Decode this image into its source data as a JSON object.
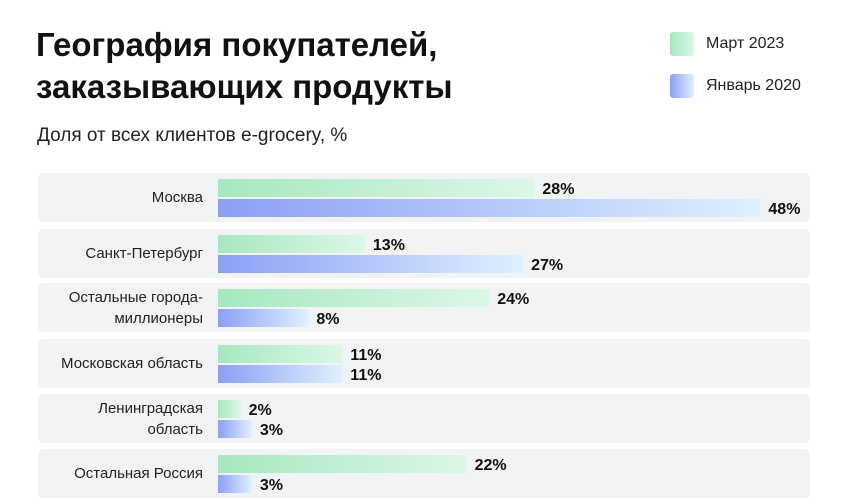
{
  "chart_data": {
    "type": "bar",
    "orientation": "horizontal",
    "title": "География покупателей, заказывающих продукты",
    "subtitle": "Доля от всех клиентов e-grocery, %",
    "categories": [
      "Москва",
      "Санкт-Петербург",
      "Остальные города-миллионеры",
      "Московская область",
      "Ленинградская область",
      "Остальная Россия"
    ],
    "series": [
      {
        "name": "Март 2023",
        "color": "#a6e8bf",
        "values": [
          28,
          13,
          24,
          11,
          2,
          22
        ],
        "value_labels": [
          "28%",
          "13%",
          "24%",
          "11%",
          "2%",
          "22%"
        ]
      },
      {
        "name": "Январь 2020",
        "color": "#8c9ff5",
        "values": [
          48,
          27,
          8,
          11,
          3,
          3
        ],
        "value_labels": [
          "48%",
          "27%",
          "8%",
          "11%",
          "3%",
          "3%"
        ]
      }
    ]
  }
}
